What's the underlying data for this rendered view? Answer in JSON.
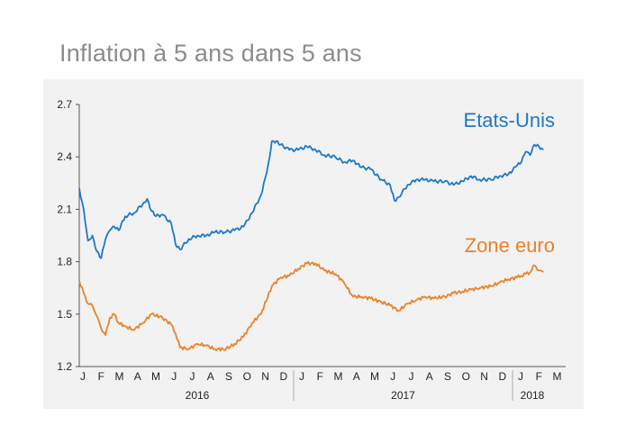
{
  "chart_data": {
    "type": "line",
    "title": "Inflation à 5 ans dans 5 ans",
    "xlabel": "",
    "ylabel": "",
    "ylim": [
      1.2,
      2.7
    ],
    "yticks": [
      "2.7",
      "2.4",
      "2.1",
      "1.8",
      "1.5",
      "1.2"
    ],
    "grid": false,
    "months": [
      "J",
      "F",
      "M",
      "A",
      "M",
      "J",
      "J",
      "A",
      "S",
      "O",
      "N",
      "D",
      "J",
      "F",
      "M",
      "A",
      "M",
      "J",
      "J",
      "A",
      "S",
      "O",
      "N",
      "D",
      "J",
      "F",
      "M"
    ],
    "years": [
      "2016",
      "2017",
      "2018"
    ],
    "series": [
      {
        "name": "Etats-Unis",
        "color": "#1f77c8",
        "x": [
          2016.0,
          2016.02,
          2016.04,
          2016.06,
          2016.08,
          2016.1,
          2016.12,
          2016.14,
          2016.16,
          2016.18,
          2016.21,
          2016.25,
          2016.29,
          2016.31,
          2016.33,
          2016.35,
          2016.38,
          2016.42,
          2016.44,
          2016.46,
          2016.5,
          2016.54,
          2016.58,
          2016.62,
          2016.67,
          2016.71,
          2016.75,
          2016.79,
          2016.83,
          2016.85,
          2016.87,
          2016.88,
          2016.9,
          2016.92,
          2016.96,
          2017.0,
          2017.04,
          2017.08,
          2017.12,
          2017.17,
          2017.21,
          2017.25,
          2017.27,
          2017.29,
          2017.33,
          2017.38,
          2017.42,
          2017.44,
          2017.46,
          2017.5,
          2017.54,
          2017.58,
          2017.62,
          2017.67,
          2017.71,
          2017.75,
          2017.79,
          2017.83,
          2017.88,
          2017.92,
          2017.96,
          2018.0,
          2018.02,
          2018.04,
          2018.06,
          2018.08,
          2018.1,
          2018.12
        ],
        "y": [
          2.22,
          2.1,
          1.92,
          1.95,
          1.86,
          1.82,
          1.93,
          1.98,
          2.0,
          1.98,
          2.06,
          2.08,
          2.13,
          2.16,
          2.09,
          2.06,
          2.07,
          2.02,
          1.9,
          1.87,
          1.93,
          1.95,
          1.95,
          1.97,
          1.97,
          1.98,
          2.0,
          2.08,
          2.18,
          2.28,
          2.4,
          2.49,
          2.49,
          2.47,
          2.44,
          2.44,
          2.46,
          2.44,
          2.41,
          2.4,
          2.37,
          2.38,
          2.36,
          2.34,
          2.33,
          2.27,
          2.24,
          2.15,
          2.17,
          2.24,
          2.27,
          2.27,
          2.26,
          2.26,
          2.24,
          2.26,
          2.29,
          2.27,
          2.27,
          2.29,
          2.3,
          2.35,
          2.37,
          2.43,
          2.41,
          2.47,
          2.46,
          2.44
        ]
      },
      {
        "name": "Zone euro",
        "color": "#e8822a",
        "x": [
          2016.0,
          2016.02,
          2016.04,
          2016.06,
          2016.08,
          2016.1,
          2016.12,
          2016.14,
          2016.16,
          2016.18,
          2016.21,
          2016.25,
          2016.29,
          2016.33,
          2016.38,
          2016.42,
          2016.44,
          2016.46,
          2016.5,
          2016.54,
          2016.58,
          2016.62,
          2016.67,
          2016.71,
          2016.75,
          2016.79,
          2016.83,
          2016.88,
          2016.92,
          2016.96,
          2017.0,
          2017.04,
          2017.08,
          2017.12,
          2017.17,
          2017.21,
          2017.25,
          2017.29,
          2017.33,
          2017.38,
          2017.42,
          2017.46,
          2017.5,
          2017.54,
          2017.58,
          2017.62,
          2017.67,
          2017.71,
          2017.75,
          2017.79,
          2017.83,
          2017.88,
          2017.92,
          2017.96,
          2018.0,
          2018.02,
          2018.04,
          2018.06,
          2018.08,
          2018.1,
          2018.12
        ],
        "y": [
          1.69,
          1.62,
          1.56,
          1.55,
          1.49,
          1.42,
          1.38,
          1.48,
          1.5,
          1.45,
          1.43,
          1.41,
          1.45,
          1.5,
          1.48,
          1.44,
          1.39,
          1.31,
          1.3,
          1.33,
          1.32,
          1.3,
          1.3,
          1.33,
          1.37,
          1.45,
          1.5,
          1.66,
          1.71,
          1.72,
          1.76,
          1.79,
          1.79,
          1.75,
          1.73,
          1.68,
          1.6,
          1.6,
          1.59,
          1.57,
          1.55,
          1.52,
          1.56,
          1.58,
          1.6,
          1.59,
          1.6,
          1.62,
          1.63,
          1.64,
          1.65,
          1.66,
          1.68,
          1.7,
          1.71,
          1.72,
          1.73,
          1.74,
          1.78,
          1.75,
          1.74
        ]
      }
    ]
  }
}
